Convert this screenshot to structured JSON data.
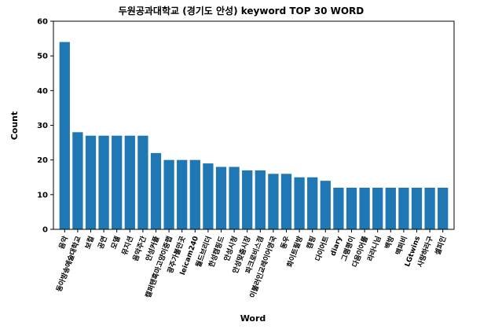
{
  "chart_data": {
    "type": "bar",
    "title": "두원공과대학교 (경기도 안성) keyword TOP 30 WORD",
    "xlabel": "Word",
    "ylabel": "Count",
    "ylim": [
      0,
      60
    ],
    "yticks": [
      0,
      10,
      20,
      30,
      40,
      50,
      60
    ],
    "grid": false,
    "bar_color": "#1f77b4",
    "categories": [
      "음악",
      "동아방송예술대학교",
      "보컬",
      "공연",
      "모델",
      "뮤지션",
      "음악주간",
      "안성커플",
      "캘퍼텐흑마고양이중랩",
      "광주가볼만곳",
      "leicam240",
      "월드브리더",
      "한성캠핑드",
      "안성시청",
      "안성맞춤시장",
      "파크로비스점",
      "이불러인교레이어영국",
      "동우",
      "화이트필방",
      "캠핑",
      "다이어트",
      "diary",
      "그램평이",
      "다음이어를",
      "라라니님",
      "백방",
      "맥퍼비",
      "LGtwins",
      "사랑하라구",
      "셀피인"
    ],
    "values": [
      54,
      28,
      27,
      27,
      27,
      27,
      27,
      22,
      20,
      20,
      20,
      19,
      18,
      18,
      17,
      17,
      16,
      16,
      15,
      15,
      14,
      12,
      12,
      12,
      12,
      12,
      12,
      12,
      12,
      12
    ]
  }
}
